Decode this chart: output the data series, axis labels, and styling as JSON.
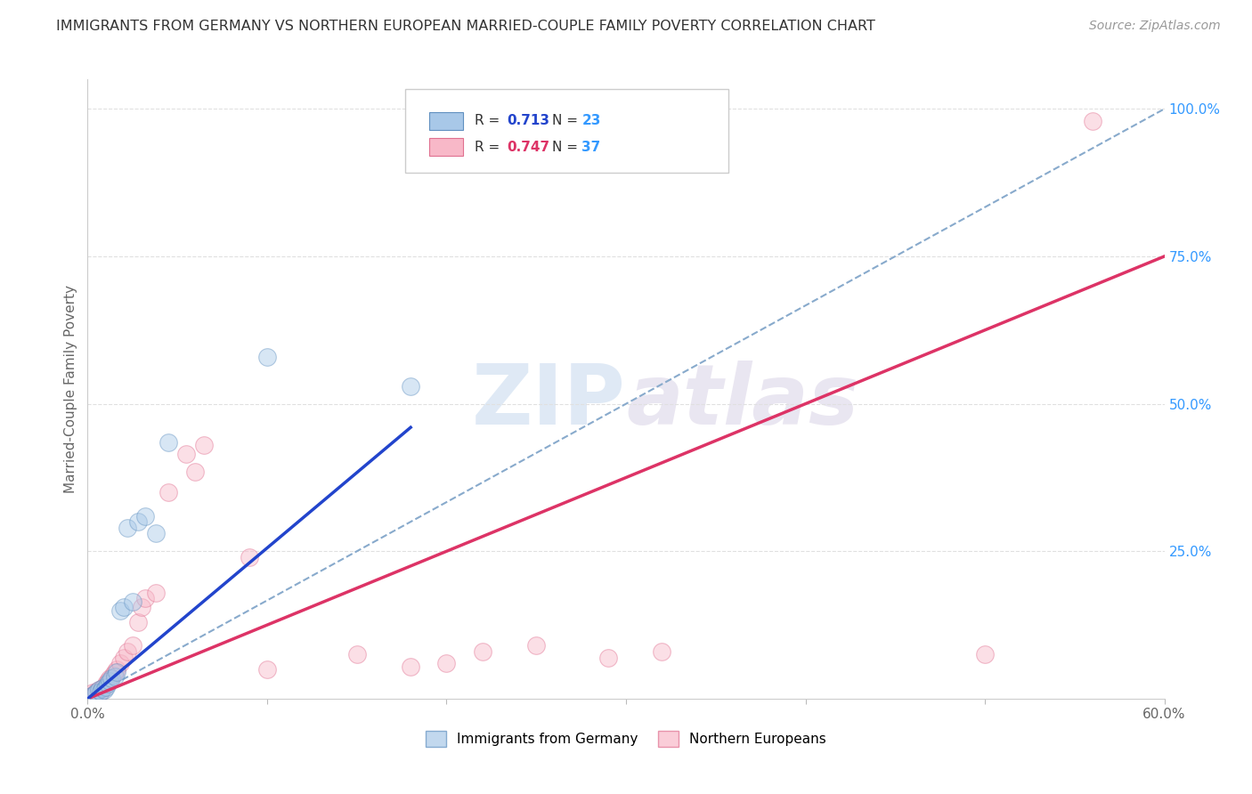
{
  "title": "IMMIGRANTS FROM GERMANY VS NORTHERN EUROPEAN MARRIED-COUPLE FAMILY POVERTY CORRELATION CHART",
  "source": "Source: ZipAtlas.com",
  "ylabel": "Married-Couple Family Poverty",
  "xlim": [
    0.0,
    0.6
  ],
  "ylim": [
    0.0,
    1.05
  ],
  "xticks": [
    0.0,
    0.1,
    0.2,
    0.3,
    0.4,
    0.5,
    0.6
  ],
  "xticklabels": [
    "0.0%",
    "",
    "",
    "",
    "",
    "",
    "60.0%"
  ],
  "ytick_positions": [
    0.0,
    0.25,
    0.5,
    0.75,
    1.0
  ],
  "ytick_labels": [
    "",
    "25.0%",
    "50.0%",
    "75.0%",
    "100.0%"
  ],
  "germany_color": "#a8c8e8",
  "northern_color": "#f8b8c8",
  "germany_edge": "#6090c0",
  "northern_edge": "#e07090",
  "trendline_germany_color": "#2244cc",
  "trendline_northern_color": "#dd3366",
  "diagonal_color": "#88aacc",
  "diagonal_style": "--",
  "R_germany": "0.713",
  "N_germany": "23",
  "R_northern": "0.747",
  "N_northern": "37",
  "legend_label_germany": "Immigrants from Germany",
  "legend_label_northern": "Northern Europeans",
  "watermark_zip": "ZIP",
  "watermark_atlas": "atlas",
  "germany_scatter_x": [
    0.002,
    0.004,
    0.005,
    0.006,
    0.007,
    0.008,
    0.009,
    0.01,
    0.011,
    0.012,
    0.013,
    0.015,
    0.016,
    0.018,
    0.02,
    0.022,
    0.025,
    0.028,
    0.032,
    0.038,
    0.045,
    0.1,
    0.18
  ],
  "germany_scatter_y": [
    0.005,
    0.008,
    0.01,
    0.015,
    0.012,
    0.018,
    0.015,
    0.02,
    0.025,
    0.03,
    0.035,
    0.038,
    0.045,
    0.15,
    0.155,
    0.29,
    0.165,
    0.3,
    0.31,
    0.28,
    0.435,
    0.58,
    0.53
  ],
  "northern_scatter_x": [
    0.002,
    0.003,
    0.004,
    0.005,
    0.006,
    0.007,
    0.008,
    0.009,
    0.01,
    0.011,
    0.012,
    0.014,
    0.015,
    0.016,
    0.018,
    0.02,
    0.022,
    0.025,
    0.028,
    0.03,
    0.032,
    0.038,
    0.045,
    0.055,
    0.06,
    0.065,
    0.09,
    0.1,
    0.15,
    0.18,
    0.2,
    0.22,
    0.25,
    0.29,
    0.32,
    0.5,
    0.56
  ],
  "northern_scatter_y": [
    0.005,
    0.01,
    0.008,
    0.012,
    0.015,
    0.012,
    0.018,
    0.02,
    0.025,
    0.03,
    0.035,
    0.04,
    0.045,
    0.05,
    0.06,
    0.07,
    0.08,
    0.09,
    0.13,
    0.155,
    0.17,
    0.18,
    0.35,
    0.415,
    0.385,
    0.43,
    0.24,
    0.05,
    0.075,
    0.055,
    0.06,
    0.08,
    0.09,
    0.07,
    0.08,
    0.075,
    0.98
  ],
  "marker_size": 200,
  "marker_alpha": 0.45,
  "grid_color": "#e0e0e0",
  "grid_style": "--",
  "background_color": "#ffffff",
  "ylabel_color": "#666666",
  "ytick_color": "#3399ff",
  "xtick_color": "#666666",
  "title_color": "#333333",
  "r_text_color": "#333333",
  "n_text_color": "#3399ff"
}
